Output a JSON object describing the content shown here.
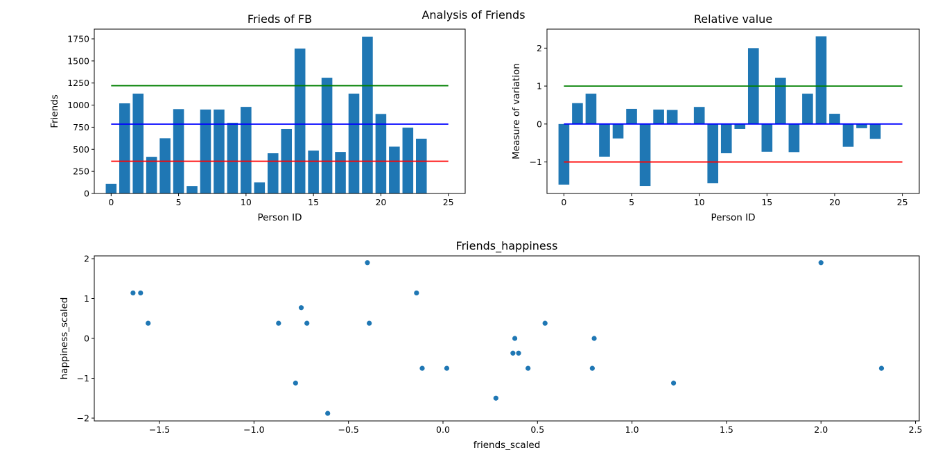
{
  "figure": {
    "suptitle": "Analysis of Friends"
  },
  "colors": {
    "bar": "#1f77b4",
    "scatter": "#1f77b4",
    "upper": "#008000",
    "mean": "#0000ff",
    "lower": "#ff0000"
  },
  "chart_data": [
    {
      "type": "bar",
      "title": "Frieds of FB",
      "xlabel": "Person ID",
      "ylabel": "Friends",
      "xlim": [
        -1.25,
        26.25
      ],
      "ylim": [
        0,
        1860
      ],
      "xticks": [
        0,
        5,
        10,
        15,
        20,
        25
      ],
      "yticks": [
        0,
        250,
        500,
        750,
        1000,
        1250,
        1500,
        1750
      ],
      "x": [
        0,
        1,
        2,
        3,
        4,
        5,
        6,
        7,
        8,
        9,
        10,
        11,
        12,
        13,
        14,
        15,
        16,
        17,
        18,
        19,
        20,
        21,
        22,
        23
      ],
      "values": [
        110,
        1020,
        1130,
        415,
        625,
        955,
        85,
        950,
        950,
        800,
        980,
        125,
        455,
        730,
        1640,
        485,
        1310,
        470,
        1130,
        1775,
        900,
        530,
        745,
        620
      ],
      "hlines": [
        {
          "y": 1220,
          "xmin": 0,
          "xmax": 25,
          "color": "#008000"
        },
        {
          "y": 785,
          "xmin": 0,
          "xmax": 25,
          "color": "#0000ff"
        },
        {
          "y": 365,
          "xmin": 0,
          "xmax": 25,
          "color": "#ff0000"
        }
      ]
    },
    {
      "type": "bar",
      "title": "Relative value",
      "xlabel": "Person ID",
      "ylabel": "Measure of variation",
      "xlim": [
        -1.25,
        26.25
      ],
      "ylim": [
        -1.83,
        2.5
      ],
      "xticks": [
        0,
        5,
        10,
        15,
        20,
        25
      ],
      "yticks": [
        -1,
        0,
        1,
        2
      ],
      "x": [
        0,
        1,
        2,
        3,
        4,
        5,
        6,
        7,
        8,
        9,
        10,
        11,
        12,
        13,
        14,
        15,
        16,
        17,
        18,
        19,
        20,
        21,
        22,
        23
      ],
      "values": [
        -1.6,
        0.55,
        0.8,
        -0.86,
        -0.38,
        0.4,
        -1.63,
        0.38,
        0.37,
        0.02,
        0.45,
        -1.56,
        -0.77,
        -0.13,
        2.0,
        -0.73,
        1.22,
        -0.74,
        0.8,
        2.31,
        0.27,
        -0.6,
        -0.11,
        -0.39
      ],
      "hlines": [
        {
          "y": 1,
          "xmin": 0,
          "xmax": 25,
          "color": "#008000"
        },
        {
          "y": 0,
          "xmin": 0,
          "xmax": 25,
          "color": "#0000ff"
        },
        {
          "y": -1,
          "xmin": 0,
          "xmax": 25,
          "color": "#ff0000"
        }
      ]
    },
    {
      "type": "scatter",
      "title": "Friends_happiness",
      "xlabel": "friends_scaled",
      "ylabel": "happiness_scaled",
      "xlim": [
        -1.845,
        2.52
      ],
      "ylim": [
        -2.07,
        2.07
      ],
      "xticks": [
        -1.5,
        -1.0,
        -0.5,
        0.0,
        0.5,
        1.0,
        1.5,
        2.0,
        2.5
      ],
      "yticks": [
        -2,
        -1,
        0,
        1,
        2
      ],
      "points": [
        [
          -1.64,
          1.14
        ],
        [
          -1.6,
          1.14
        ],
        [
          -1.56,
          0.38
        ],
        [
          -0.87,
          0.38
        ],
        [
          -0.78,
          -1.12
        ],
        [
          -0.75,
          0.77
        ],
        [
          -0.72,
          0.38
        ],
        [
          -0.61,
          -1.88
        ],
        [
          -0.4,
          1.9
        ],
        [
          -0.39,
          0.38
        ],
        [
          -0.14,
          1.14
        ],
        [
          -0.11,
          -0.75
        ],
        [
          0.02,
          -0.75
        ],
        [
          0.28,
          -1.5
        ],
        [
          0.37,
          -0.37
        ],
        [
          0.38,
          0.0
        ],
        [
          0.4,
          -0.37
        ],
        [
          0.45,
          -0.75
        ],
        [
          0.54,
          0.38
        ],
        [
          0.79,
          -0.75
        ],
        [
          0.8,
          0.0
        ],
        [
          1.22,
          -1.12
        ],
        [
          2.0,
          1.9
        ],
        [
          2.32,
          -0.75
        ]
      ]
    }
  ]
}
